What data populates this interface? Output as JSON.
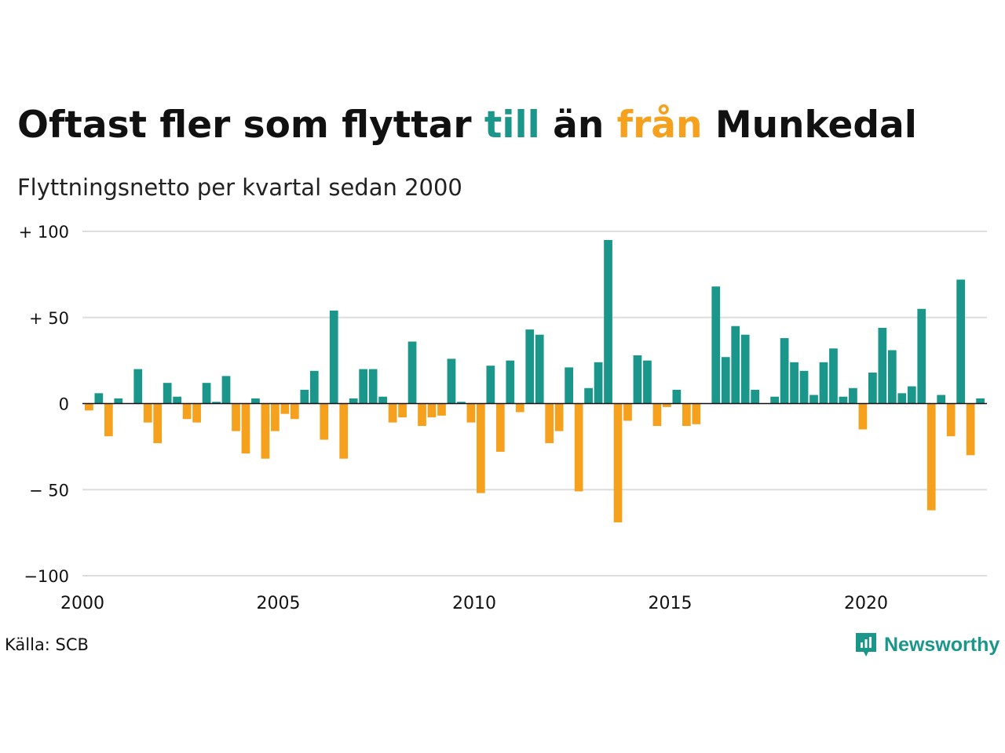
{
  "title": {
    "part1": "Oftast fler som flyttar ",
    "till": "till",
    "part2": " än ",
    "fran": "från",
    "part3": " Munkedal"
  },
  "subtitle": "Flyttningsnetto per kvartal sedan 2000",
  "source": "Källa: SCB",
  "logo_text": "Newsworthy",
  "colors": {
    "positive": "#1a968a",
    "negative": "#f5a11d",
    "grid": "#dddddd",
    "zero": "#111111"
  },
  "chart_data": {
    "type": "bar",
    "x_start": 2000,
    "x_step": 0.25,
    "ylim": [
      -100,
      100
    ],
    "xlim": [
      2000,
      2023.25
    ],
    "y_ticks": [
      {
        "value": 100,
        "label": "+ 100"
      },
      {
        "value": 50,
        "label": "+  50"
      },
      {
        "value": 0,
        "label": "0"
      },
      {
        "value": -50,
        "label": "− 50"
      },
      {
        "value": -100,
        "label": "−100"
      }
    ],
    "x_ticks": [
      "2000",
      "2005",
      "2010",
      "2015",
      "2020"
    ],
    "values": [
      -4,
      6,
      -19,
      3,
      0,
      20,
      -11,
      -23,
      12,
      4,
      -9,
      -11,
      12,
      1,
      16,
      -16,
      -29,
      3,
      -32,
      -16,
      -6,
      -9,
      8,
      19,
      -21,
      54,
      -32,
      3,
      20,
      20,
      4,
      -11,
      -8,
      36,
      -13,
      -8,
      -7,
      26,
      1,
      -11,
      -52,
      22,
      -28,
      25,
      -5,
      43,
      40,
      -23,
      -16,
      21,
      -51,
      9,
      24,
      95,
      -69,
      -10,
      28,
      25,
      -13,
      -2,
      8,
      -13,
      -12,
      0,
      68,
      27,
      45,
      40,
      8,
      0,
      4,
      38,
      24,
      19,
      5,
      24,
      32,
      4,
      9,
      -15,
      18,
      44,
      31,
      6,
      10,
      55,
      -62,
      5,
      -19,
      72,
      -30,
      3
    ]
  }
}
